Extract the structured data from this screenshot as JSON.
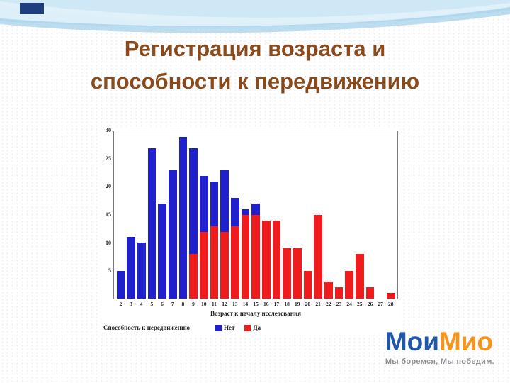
{
  "slide": {
    "title_line1": "Регистрация возраста и",
    "title_line2": "способности к передвижению",
    "title_color": "#8a4a1c"
  },
  "chart_data": {
    "type": "bar",
    "stacked": true,
    "title": "",
    "xlabel": "Возраст к началу исследования",
    "ylabel": "",
    "legend_label": "Способность к передвижению",
    "legend_position": "bottom",
    "grid": false,
    "ylim": [
      0,
      30
    ],
    "yticks": [
      5,
      10,
      15,
      20,
      25,
      30
    ],
    "categories": [
      "2",
      "3",
      "4",
      "5",
      "6",
      "7",
      "8",
      "9",
      "10",
      "11",
      "12",
      "13",
      "14",
      "15",
      "16",
      "17",
      "18",
      "19",
      "20",
      "21",
      "22",
      "23",
      "24",
      "25",
      "26",
      "27",
      "28"
    ],
    "series": [
      {
        "name": "Да",
        "color": "#ee1c1c",
        "values": [
          0,
          0,
          0,
          0,
          0,
          0,
          0,
          8,
          12,
          13,
          12,
          13,
          15,
          15,
          14,
          14,
          9,
          9,
          5,
          15,
          3,
          2,
          5,
          8,
          2,
          0,
          1
        ]
      },
      {
        "name": "Нет",
        "color": "#2020cc",
        "values": [
          5,
          11,
          10,
          27,
          17,
          23,
          29,
          19,
          10,
          8,
          11,
          5,
          1,
          2,
          0,
          0,
          0,
          0,
          0,
          0,
          0,
          0,
          0,
          0,
          0,
          0,
          0
        ]
      }
    ]
  },
  "decor": {
    "wave_color_light": "#cfe8f5",
    "wave_color_mid": "#a4d2ea",
    "corner_color": "#1e3e7e"
  },
  "logo": {
    "part1": "Мои",
    "part2": "Мио",
    "part1_color": "#2057a7",
    "part2_color": "#f7941d",
    "tagline": "Мы боремся, Мы победим."
  }
}
